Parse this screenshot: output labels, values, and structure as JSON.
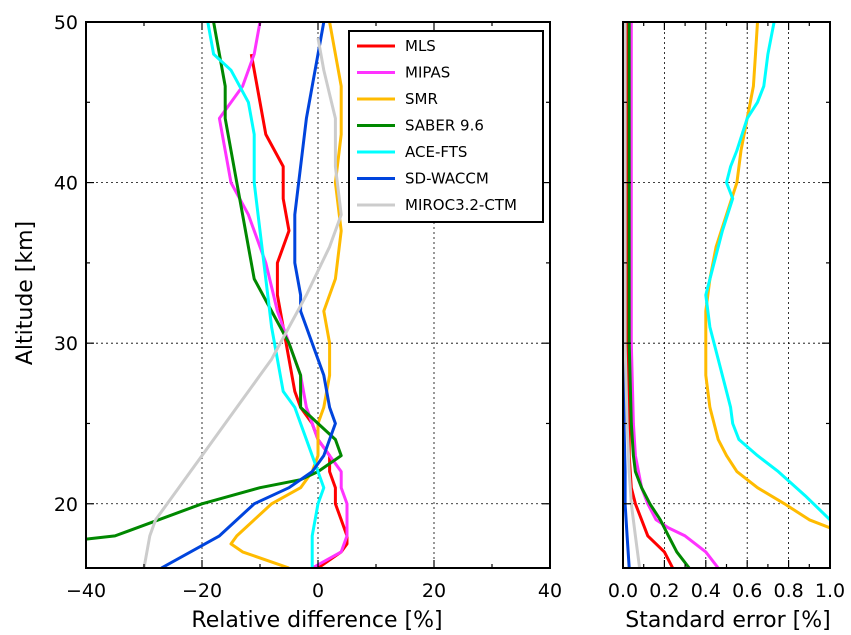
{
  "chart_data": [
    {
      "type": "line",
      "xlabel": "Relative difference [%]",
      "ylabel": "Altitude [km]",
      "xlim": [
        -40,
        40
      ],
      "ylim": [
        16,
        50
      ],
      "xticks": [
        "−40",
        "−20",
        "0",
        "20",
        "40"
      ],
      "yticks": [
        "20",
        "30",
        "40",
        "50"
      ],
      "grid": true,
      "legend_position": "top-right",
      "series": [
        {
          "name": "MLS",
          "color": "#ff0000",
          "x": [
            -11.5,
            -11,
            -10,
            -9,
            -6,
            -6,
            -5,
            -7,
            -7,
            -6,
            -5,
            -4,
            -3,
            -1,
            0,
            2,
            2,
            3,
            3,
            4,
            5,
            5,
            4,
            0
          ],
          "y": [
            48,
            47,
            45,
            43,
            41,
            39,
            37,
            35,
            33,
            31,
            29,
            27,
            26,
            25,
            24,
            23,
            22,
            21,
            20,
            19,
            18,
            17.5,
            17,
            16
          ]
        },
        {
          "name": "MIPAS",
          "color": "#ff33ff",
          "x": [
            -10,
            -11,
            -13,
            -17,
            -16,
            -15,
            -12,
            -9,
            -7,
            -5,
            -3,
            -2,
            -1,
            0,
            2,
            4,
            4,
            5,
            5,
            5,
            4,
            -1
          ],
          "y": [
            50,
            48,
            46,
            44,
            42,
            40,
            38,
            35,
            32,
            30,
            28,
            26,
            25,
            24,
            23,
            22,
            21,
            20,
            19,
            18,
            17,
            16
          ]
        },
        {
          "name": "SMR",
          "color": "#ffbb00",
          "x": [
            2,
            3,
            4,
            4,
            3,
            4,
            3,
            1,
            2,
            2,
            1,
            0,
            0,
            0,
            -1,
            -3,
            -8,
            -11,
            -14,
            -15,
            -13,
            -5
          ],
          "y": [
            50,
            48,
            46,
            43,
            40,
            37,
            34,
            32,
            30,
            28,
            26,
            25,
            24,
            23,
            22,
            21,
            20,
            19,
            18,
            17.5,
            17,
            16
          ]
        },
        {
          "name": "SABER 9.6",
          "color": "#008800",
          "x": [
            -18,
            -17,
            -16,
            -16,
            -15,
            -14,
            -13,
            -12,
            -11,
            -8,
            -5,
            -3,
            -3,
            0,
            3,
            4,
            0,
            -3,
            -10,
            -20,
            -35,
            -40
          ],
          "y": [
            50,
            48,
            46,
            44,
            42,
            40,
            38,
            36,
            34,
            32,
            30,
            28,
            26,
            25,
            24,
            23,
            22,
            21.5,
            21,
            20,
            18,
            17.8
          ]
        },
        {
          "name": "ACE-FTS",
          "color": "#00ffff",
          "x": [
            -19,
            -18,
            -15,
            -12,
            -11,
            -11,
            -10,
            -9,
            -8,
            -7,
            -6,
            -4,
            -3,
            -2,
            -1,
            0,
            1,
            0,
            -1,
            -1
          ],
          "y": [
            50,
            48,
            47,
            45,
            43,
            40,
            37,
            34,
            31,
            29,
            27,
            26,
            25,
            24,
            23,
            22,
            21,
            20,
            18,
            16
          ]
        },
        {
          "name": "SD-WACCM",
          "color": "#0044dd",
          "x": [
            1,
            0,
            -1,
            -2,
            -3,
            -4,
            -4,
            -3,
            -3,
            -2,
            -1,
            1,
            2,
            3,
            2,
            1,
            -1,
            -5,
            -11,
            -17,
            -27
          ],
          "y": [
            50,
            48,
            46,
            44,
            41,
            38,
            35,
            33,
            32,
            31,
            30,
            28,
            26,
            25,
            24,
            23,
            22,
            21,
            20,
            18,
            16
          ]
        },
        {
          "name": "MIROC3.2-CTM",
          "color": "#cccccc",
          "x": [
            0,
            1,
            3,
            3,
            4,
            2,
            -2,
            -5,
            -8,
            -10,
            -12,
            -14,
            -17,
            -20,
            -22,
            -24,
            -26,
            -28,
            -29,
            -30
          ],
          "y": [
            49,
            47,
            44,
            41,
            38,
            36,
            33,
            31,
            29,
            28,
            27,
            26,
            24.5,
            23,
            22,
            21,
            20,
            19,
            18,
            16
          ]
        }
      ]
    },
    {
      "type": "line",
      "xlabel": "Standard error [%]",
      "xlim": [
        0,
        1.0
      ],
      "ylim": [
        16,
        50
      ],
      "xticks": [
        "0.0",
        "0.2",
        "0.4",
        "0.6",
        "0.8",
        "1.0"
      ],
      "grid": true,
      "series": [
        {
          "name": "MLS",
          "color": "#ff0000",
          "x": [
            0.02,
            0.02,
            0.02,
            0.02,
            0.02,
            0.03,
            0.03,
            0.04,
            0.06,
            0.09,
            0.12,
            0.2,
            0.24
          ],
          "y": [
            50,
            45,
            40,
            35,
            30,
            25,
            23,
            21,
            20,
            19,
            18,
            17,
            16
          ]
        },
        {
          "name": "MIPAS",
          "color": "#ff33ff",
          "x": [
            0.04,
            0.04,
            0.04,
            0.04,
            0.04,
            0.05,
            0.06,
            0.09,
            0.12,
            0.16,
            0.22,
            0.3,
            0.4,
            0.46
          ],
          "y": [
            50,
            45,
            40,
            35,
            30,
            25,
            23,
            21,
            20,
            19,
            18.5,
            18,
            17,
            16
          ]
        },
        {
          "name": "SMR",
          "color": "#ffbb00",
          "x": [
            0.65,
            0.64,
            0.63,
            0.6,
            0.57,
            0.55,
            0.5,
            0.45,
            0.42,
            0.4,
            0.4,
            0.4,
            0.42,
            0.46,
            0.5,
            0.55,
            0.65,
            0.78,
            0.9,
            1.0
          ],
          "y": [
            50,
            48,
            46,
            44,
            42,
            40,
            38,
            36,
            34,
            32,
            30,
            28,
            26,
            24,
            23,
            22,
            21,
            20,
            19,
            18.5
          ]
        },
        {
          "name": "SABER 9.6",
          "color": "#008800",
          "x": [
            0.03,
            0.03,
            0.03,
            0.03,
            0.03,
            0.04,
            0.05,
            0.06,
            0.09,
            0.13,
            0.18,
            0.22,
            0.26,
            0.32
          ],
          "y": [
            50,
            45,
            40,
            35,
            30,
            25,
            23,
            22,
            21,
            20,
            19,
            18,
            17,
            16
          ]
        },
        {
          "name": "ACE-FTS",
          "color": "#00ffff",
          "x": [
            0.73,
            0.7,
            0.68,
            0.65,
            0.6,
            0.55,
            0.52,
            0.5,
            0.53,
            0.48,
            0.44,
            0.4,
            0.42,
            0.46,
            0.5,
            0.52,
            0.53,
            0.56,
            0.65,
            0.75,
            0.88,
            1.0
          ],
          "y": [
            50,
            48,
            46,
            45,
            44,
            42,
            41,
            40,
            39,
            37,
            35,
            33,
            31,
            29,
            27,
            26,
            25,
            24,
            23,
            22,
            20.5,
            19
          ]
        },
        {
          "name": "SD-WACCM",
          "color": "#0044dd",
          "x": [
            0.005,
            0.005,
            0.005,
            0.005,
            0.005,
            0.005,
            0.01,
            0.01,
            0.02,
            0.03
          ],
          "y": [
            50,
            45,
            40,
            35,
            30,
            25,
            22,
            20,
            18,
            16
          ]
        },
        {
          "name": "MIROC3.2-CTM",
          "color": "#cccccc",
          "x": [
            0.01,
            0.01,
            0.01,
            0.01,
            0.01,
            0.02,
            0.03,
            0.04,
            0.06,
            0.08
          ],
          "y": [
            50,
            45,
            40,
            35,
            30,
            25,
            22,
            20,
            18,
            16
          ]
        }
      ]
    }
  ]
}
